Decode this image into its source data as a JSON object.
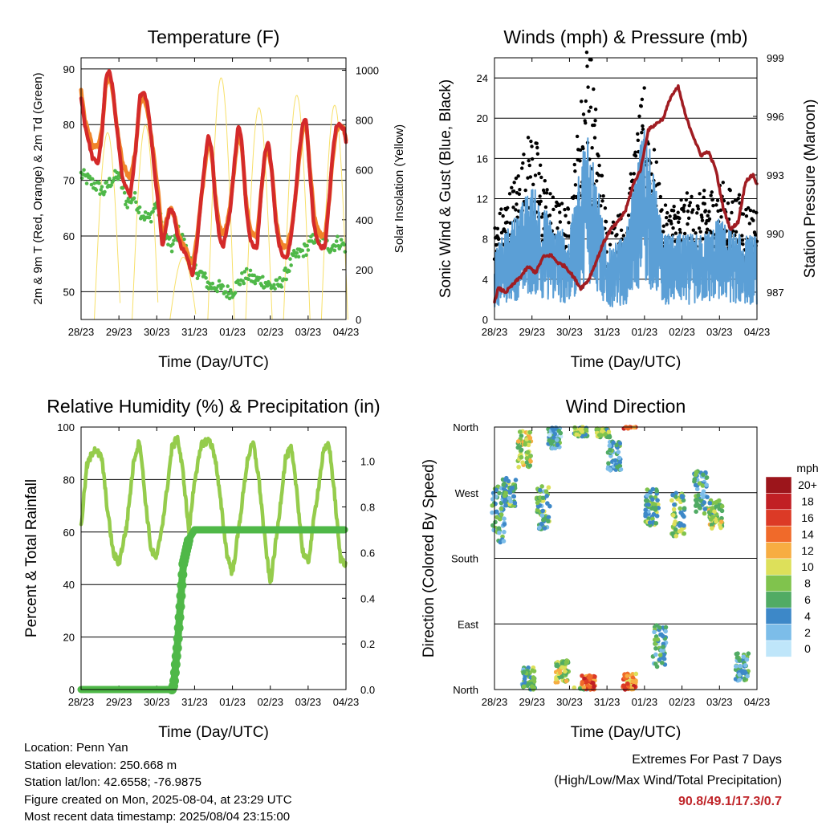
{
  "footer": {
    "location": "Location: Penn Yan",
    "elevation": "Station elevation: 250.668 m",
    "latlon": "Station lat/lon: 42.6558; -76.9875",
    "created": "Figure created on Mon, 2025-08-04, at 23:29 UTC",
    "recent": "Most recent data timestamp: 2025/08/04 23:15:00",
    "extremes_title": "Extremes For Past 7 Days",
    "extremes_subtitle": "(High/Low/Max Wind/Total Precipitation)",
    "extremes_values": "90.8/49.1/17.3/0.7"
  },
  "colors": {
    "temp_red": "#d42a2a",
    "temp_orange": "#f0842a",
    "dewpoint_green": "#4fb848",
    "solar_yellow": "#f7e06a",
    "wind_black": "#000000",
    "gust_blue": "#5b9fd6",
    "pressure_maroon": "#a01c22",
    "rh_lightgreen": "#95cc4c",
    "precip_green": "#4fb848",
    "speed_scale": [
      "#bfe6fa",
      "#7cbde9",
      "#3d88c8",
      "#51ab64",
      "#80c34d",
      "#dde05a",
      "#f7ad42",
      "#f06a2a",
      "#dc3a26",
      "#c11f24",
      "#9c151b"
    ],
    "speed_labels": [
      "0",
      "2",
      "4",
      "6",
      "8",
      "10",
      "12",
      "14",
      "16",
      "18",
      "20+"
    ]
  },
  "chart_data": [
    {
      "type": "line",
      "title": "Temperature (F)",
      "xlabel": "Time (Day/UTC)",
      "ylabel": "2m & 9m T (Red, Orange) & 2m Td (Green)",
      "ylabel_right": "Solar Insolation (Yellow)",
      "xticks": [
        "28/23",
        "29/23",
        "30/23",
        "31/23",
        "01/23",
        "02/23",
        "03/23",
        "04/23"
      ],
      "ylim": [
        45,
        92
      ],
      "yticks": [
        50,
        60,
        70,
        80,
        90
      ],
      "ylim_right": [
        0,
        1050
      ],
      "yticks_right": [
        0,
        200,
        400,
        600,
        800,
        1000
      ],
      "grid": true,
      "series": [
        {
          "name": "2m T",
          "x": [
            0,
            0.1,
            0.3,
            0.45,
            0.55,
            0.65,
            0.75,
            0.85,
            0.9,
            1.0,
            1.1,
            1.3,
            1.45,
            1.55,
            1.65,
            1.75,
            1.85,
            1.95,
            2.05,
            2.15,
            2.25,
            2.35,
            2.45,
            2.55,
            2.65,
            2.75,
            2.85,
            2.95,
            3.05,
            3.15,
            3.25,
            3.35,
            3.45,
            3.55,
            3.65,
            3.75,
            3.85,
            3.95,
            4.05,
            4.15,
            4.25,
            4.35,
            4.45,
            4.55,
            4.65,
            4.75,
            4.85,
            4.95,
            5.05,
            5.15,
            5.25,
            5.35,
            5.45,
            5.55,
            5.65,
            5.75,
            5.85,
            5.95,
            6.05,
            6.15,
            6.25,
            6.35,
            6.45,
            6.55,
            6.65,
            6.75,
            6.85,
            6.95,
            7.0
          ],
          "values": [
            85,
            80,
            74,
            73,
            78,
            88,
            90,
            86,
            82,
            76,
            70,
            67,
            76,
            85,
            86,
            84,
            78,
            71,
            65,
            58,
            62,
            65,
            64,
            60,
            58,
            57,
            55,
            53,
            58,
            65,
            72,
            78,
            76,
            66,
            60,
            58,
            61,
            65,
            73,
            80,
            77,
            66,
            60,
            58,
            58,
            67,
            75,
            77,
            71,
            62,
            58,
            56,
            56,
            60,
            66,
            74,
            80,
            81,
            71,
            62,
            59,
            58,
            58,
            66,
            75,
            80,
            80,
            79,
            77
          ]
        },
        {
          "name": "9m T",
          "x": [
            0,
            0.1,
            0.3,
            0.45,
            0.55,
            0.65,
            0.75,
            0.85,
            0.9,
            1.0,
            1.1,
            1.3,
            1.45,
            1.55,
            1.65,
            1.75,
            1.85,
            1.95,
            2.05,
            2.15,
            2.25,
            2.35,
            2.45,
            2.55,
            2.65,
            2.75,
            2.85,
            2.95,
            3.05,
            3.15,
            3.25,
            3.35,
            3.45,
            3.55,
            3.65,
            3.75,
            3.85,
            3.95,
            4.05,
            4.15,
            4.25,
            4.35,
            4.45,
            4.55,
            4.65,
            4.75,
            4.85,
            4.95,
            5.05,
            5.15,
            5.25,
            5.35,
            5.45,
            5.55,
            5.65,
            5.75,
            5.85,
            5.95,
            6.05,
            6.15,
            6.25,
            6.35,
            6.45,
            6.55,
            6.65,
            6.75,
            6.85,
            6.95,
            7.0
          ],
          "values": [
            86,
            81,
            76,
            76,
            79,
            87,
            89,
            85,
            82,
            77,
            73,
            70,
            76,
            84,
            85,
            83,
            78,
            73,
            67,
            59,
            63,
            65,
            64,
            61,
            59,
            58,
            56,
            55,
            59,
            65,
            71,
            77,
            75,
            67,
            62,
            60,
            62,
            66,
            72,
            79,
            76,
            67,
            62,
            60,
            60,
            67,
            74,
            76,
            71,
            63,
            59,
            58,
            58,
            61,
            66,
            73,
            79,
            80,
            72,
            64,
            61,
            60,
            60,
            66,
            74,
            79,
            80,
            79,
            77
          ]
        },
        {
          "name": "2m Td",
          "x": [
            0,
            0.2,
            0.4,
            0.6,
            0.8,
            1.0,
            1.2,
            1.4,
            1.6,
            1.8,
            2.0,
            2.2,
            2.4,
            2.6,
            2.8,
            3.0,
            3.2,
            3.4,
            3.6,
            3.8,
            4.0,
            4.2,
            4.4,
            4.6,
            4.8,
            5.0,
            5.2,
            5.4,
            5.6,
            5.8,
            6.0,
            6.2,
            6.4,
            6.6,
            6.8,
            7.0
          ],
          "values": [
            71,
            70,
            69,
            68,
            70,
            71,
            66,
            67,
            64,
            63,
            66,
            60,
            58,
            61,
            57,
            54,
            53,
            51,
            51,
            50,
            50,
            52,
            53,
            52,
            52,
            51,
            51,
            53,
            56,
            57,
            58,
            60,
            59,
            58,
            59,
            58
          ]
        },
        {
          "name": "Solar Insolation",
          "axis": "right",
          "peaks": [
            {
              "day": 0.7,
              "value": 750
            },
            {
              "day": 1.7,
              "value": 780
            },
            {
              "day": 2.7,
              "value": 250
            },
            {
              "day": 3.7,
              "value": 970
            },
            {
              "day": 4.7,
              "value": 850
            },
            {
              "day": 5.7,
              "value": 900
            },
            {
              "day": 6.7,
              "value": 860
            }
          ]
        }
      ]
    },
    {
      "type": "line",
      "title": "Winds (mph) & Pressure (mb)",
      "xlabel": "Time (Day/UTC)",
      "ylabel": "Sonic Wind & Gust (Blue, Black)",
      "ylabel_right": "Station Pressure (Maroon)",
      "xticks": [
        "28/23",
        "29/23",
        "30/23",
        "31/23",
        "01/23",
        "02/23",
        "03/23",
        "04/23"
      ],
      "ylim": [
        0,
        26
      ],
      "yticks": [
        0,
        4,
        8,
        12,
        16,
        20,
        24
      ],
      "ylim_right": [
        985.6,
        999
      ],
      "yticks_right": [
        987,
        990,
        993,
        996,
        999
      ],
      "grid": true,
      "series": [
        {
          "name": "Sonic Wind",
          "x": [
            0,
            0.5,
            1,
            1.5,
            2,
            2.5,
            3,
            3.5,
            4,
            4.5,
            5,
            5.5,
            6,
            6.5,
            7
          ],
          "values": [
            4,
            6,
            8,
            6,
            5,
            12,
            4,
            5,
            12,
            5,
            5,
            5,
            6,
            5,
            5
          ]
        },
        {
          "name": "Gust",
          "x": [
            0,
            0.5,
            1,
            1.5,
            2,
            2.5,
            3,
            3.5,
            4,
            4.5,
            5,
            5.5,
            6,
            6.5,
            7
          ],
          "values": [
            7,
            10,
            14,
            9,
            8,
            21,
            7,
            8,
            17,
            8,
            9,
            9,
            10,
            9,
            8
          ]
        },
        {
          "name": "Station Pressure",
          "axis": "right",
          "x": [
            0,
            0.1,
            0.3,
            0.5,
            0.7,
            0.9,
            1.1,
            1.3,
            1.5,
            1.7,
            1.9,
            2.1,
            2.3,
            2.5,
            2.7,
            2.9,
            3.1,
            3.3,
            3.5,
            3.7,
            3.9,
            4.1,
            4.3,
            4.5,
            4.7,
            4.9,
            5.1,
            5.3,
            5.5,
            5.7,
            5.9,
            6.1,
            6.3,
            6.5,
            6.7,
            6.9,
            7.0
          ],
          "values": [
            986.5,
            987.2,
            987.0,
            987.4,
            987.8,
            988.3,
            988.0,
            988.8,
            988.9,
            988.5,
            988.3,
            987.8,
            987.2,
            987.6,
            988.5,
            989.5,
            990.2,
            990.6,
            991.2,
            992.5,
            993.3,
            995.3,
            995.6,
            995.9,
            997.0,
            997.5,
            996.0,
            995.0,
            994.0,
            994.2,
            993.3,
            991.3,
            990.2,
            990.6,
            992.7,
            993.0,
            992.5
          ]
        }
      ]
    },
    {
      "type": "line",
      "title": "Relative Humidity (%) & Precipitation (in)",
      "xlabel": "Time (Day/UTC)",
      "ylabel": "Percent & Total Rainfall",
      "xticks": [
        "28/23",
        "29/23",
        "30/23",
        "31/23",
        "01/23",
        "02/23",
        "03/23",
        "04/23"
      ],
      "ylim": [
        0,
        100
      ],
      "yticks": [
        0,
        20,
        40,
        60,
        80,
        100
      ],
      "ylim_right": [
        0,
        1.15
      ],
      "yticks_right": [
        "0.0",
        "0.2",
        "0.4",
        "0.6",
        "0.8",
        "1.0"
      ],
      "grid": true,
      "series": [
        {
          "name": "Relative Humidity",
          "x": [
            0,
            0.15,
            0.35,
            0.55,
            0.7,
            0.85,
            1.0,
            1.2,
            1.4,
            1.55,
            1.7,
            1.85,
            2.0,
            2.2,
            2.4,
            2.55,
            2.7,
            2.85,
            3.0,
            3.2,
            3.4,
            3.55,
            3.7,
            3.85,
            4.0,
            4.2,
            4.4,
            4.55,
            4.7,
            4.85,
            5.0,
            5.2,
            5.4,
            5.55,
            5.7,
            5.85,
            6.0,
            6.2,
            6.4,
            6.55,
            6.7,
            6.85,
            7.0
          ],
          "values": [
            62,
            85,
            92,
            88,
            68,
            52,
            48,
            62,
            88,
            95,
            72,
            53,
            50,
            68,
            92,
            96,
            82,
            60,
            80,
            94,
            95,
            88,
            70,
            52,
            44,
            65,
            88,
            94,
            80,
            58,
            40,
            62,
            88,
            92,
            76,
            53,
            48,
            70,
            90,
            94,
            74,
            50,
            48
          ]
        },
        {
          "name": "Total Precipitation",
          "x": [
            0,
            1.0,
            2.0,
            2.4,
            2.45,
            2.55,
            2.7,
            2.85,
            3.0,
            4.0,
            5.0,
            6.0,
            7.0
          ],
          "values": [
            0,
            0,
            0,
            0,
            0.02,
            0.2,
            0.55,
            0.66,
            0.7,
            0.7,
            0.7,
            0.7,
            0.7
          ]
        }
      ]
    },
    {
      "type": "scatter",
      "title": "Wind Direction",
      "xlabel": "Time (Day/UTC)",
      "ylabel": "Direction (Colored By Speed)",
      "xticks": [
        "28/23",
        "29/23",
        "30/23",
        "31/23",
        "01/23",
        "02/23",
        "03/23",
        "04/23"
      ],
      "yticks": [
        "North",
        "East",
        "South",
        "West",
        "North"
      ],
      "legend_title": "mph",
      "grid": true,
      "clusters": [
        {
          "day": 0.1,
          "dir": 240,
          "spread": 40,
          "speed": 5
        },
        {
          "day": 0.4,
          "dir": 270,
          "spread": 20,
          "speed": 6
        },
        {
          "day": 0.8,
          "dir": 330,
          "spread": 25,
          "speed": 9
        },
        {
          "day": 0.9,
          "dir": 15,
          "spread": 15,
          "speed": 6
        },
        {
          "day": 1.3,
          "dir": 250,
          "spread": 30,
          "speed": 6
        },
        {
          "day": 1.6,
          "dir": 345,
          "spread": 15,
          "speed": 4
        },
        {
          "day": 1.8,
          "dir": 25,
          "spread": 15,
          "speed": 9
        },
        {
          "day": 2.3,
          "dir": 355,
          "spread": 8,
          "speed": 7
        },
        {
          "day": 2.5,
          "dir": 10,
          "spread": 10,
          "speed": 15
        },
        {
          "day": 2.9,
          "dir": 352,
          "spread": 6,
          "speed": 8
        },
        {
          "day": 3.2,
          "dir": 320,
          "spread": 20,
          "speed": 4
        },
        {
          "day": 3.6,
          "dir": 10,
          "spread": 12,
          "speed": 14
        },
        {
          "day": 4.2,
          "dir": 250,
          "spread": 25,
          "speed": 6
        },
        {
          "day": 4.4,
          "dir": 60,
          "spread": 30,
          "speed": 4
        },
        {
          "day": 4.9,
          "dir": 240,
          "spread": 30,
          "speed": 7
        },
        {
          "day": 5.5,
          "dir": 270,
          "spread": 30,
          "speed": 5
        },
        {
          "day": 5.9,
          "dir": 240,
          "spread": 20,
          "speed": 8
        },
        {
          "day": 6.6,
          "dir": 30,
          "spread": 20,
          "speed": 5
        }
      ]
    }
  ]
}
